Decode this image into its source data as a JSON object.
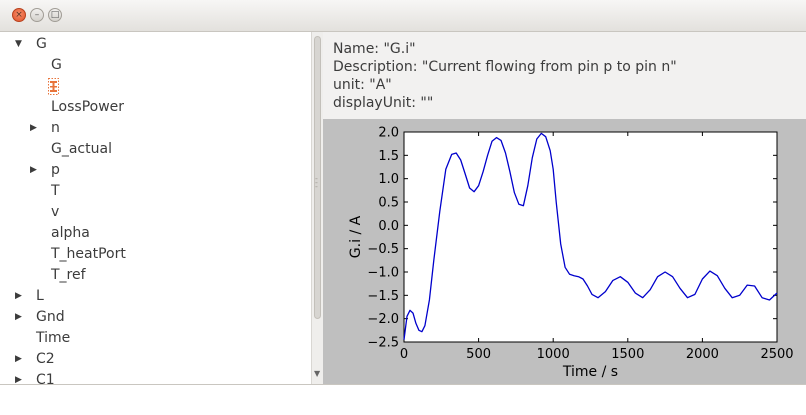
{
  "window": {
    "close_glyph": "×",
    "minimize_glyph": "–",
    "maximize_glyph": "□"
  },
  "tree": [
    {
      "label": "G",
      "depth": 0,
      "expander": "expanded",
      "icon": "triangle-down-icon"
    },
    {
      "label": "G",
      "depth": 1,
      "expander": "none"
    },
    {
      "label": "",
      "depth": 1,
      "expander": "none",
      "icon": "variable-icon",
      "selected": true
    },
    {
      "label": "LossPower",
      "depth": 1,
      "expander": "none"
    },
    {
      "label": "n",
      "depth": 1,
      "expander": "collapsed",
      "icon": "triangle-right-icon"
    },
    {
      "label": "G_actual",
      "depth": 1,
      "expander": "none"
    },
    {
      "label": "p",
      "depth": 1,
      "expander": "collapsed",
      "icon": "triangle-right-icon"
    },
    {
      "label": "T",
      "depth": 1,
      "expander": "none"
    },
    {
      "label": "v",
      "depth": 1,
      "expander": "none"
    },
    {
      "label": "alpha",
      "depth": 1,
      "expander": "none"
    },
    {
      "label": "T_heatPort",
      "depth": 1,
      "expander": "none"
    },
    {
      "label": "T_ref",
      "depth": 1,
      "expander": "none"
    },
    {
      "label": "L",
      "depth": 0,
      "expander": "collapsed",
      "icon": "triangle-right-icon"
    },
    {
      "label": "Gnd",
      "depth": 0,
      "expander": "collapsed",
      "icon": "triangle-right-icon"
    },
    {
      "label": "Time",
      "depth": 0,
      "expander": "none"
    },
    {
      "label": "C2",
      "depth": 0,
      "expander": "collapsed",
      "icon": "triangle-right-icon"
    },
    {
      "label": "C1",
      "depth": 0,
      "expander": "collapsed",
      "icon": "triangle-right-icon"
    }
  ],
  "info": {
    "name": "Name: \"G.i\"",
    "description": "Description: \"Current flowing from pin p to pin n\"",
    "unit": "unit: \"A\"",
    "display_unit": "displayUnit: \"\""
  },
  "colors": {
    "line": "#0000cc",
    "plot_bg": "#bfbfbf",
    "selected_icon": "#e8743b"
  },
  "chart_data": {
    "type": "line",
    "xlabel": "Time / s",
    "ylabel": "G.i / A",
    "xlim": [
      0,
      2500
    ],
    "ylim": [
      -2.5,
      2.0
    ],
    "xticks": [
      0,
      500,
      1000,
      1500,
      2000,
      2500
    ],
    "yticks": [
      -2.5,
      -2.0,
      -1.5,
      -1.0,
      -0.5,
      0.0,
      0.5,
      1.0,
      1.5,
      2.0
    ],
    "xtick_labels": [
      "0",
      "500",
      "1000",
      "1500",
      "2000",
      "2500"
    ],
    "ytick_labels": [
      "−2.5",
      "−2.0",
      "−1.5",
      "−1.0",
      "−0.5",
      "0.0",
      "0.5",
      "1.0",
      "1.5",
      "2.0"
    ],
    "grid": false,
    "series": [
      {
        "x": [
          0,
          20,
          40,
          60,
          80,
          100,
          120,
          140,
          170,
          200,
          240,
          280,
          320,
          350,
          380,
          410,
          440,
          470,
          500,
          530,
          560,
          590,
          620,
          650,
          680,
          710,
          740,
          770,
          800,
          830,
          860,
          890,
          920,
          950,
          980,
          1000,
          1020,
          1050,
          1080,
          1110,
          1140,
          1170,
          1200,
          1230,
          1260,
          1300,
          1350,
          1400,
          1450,
          1500,
          1550,
          1600,
          1650,
          1700,
          1750,
          1800,
          1850,
          1900,
          1950,
          2000,
          2050,
          2100,
          2150,
          2200,
          2250,
          2300,
          2350,
          2400,
          2450,
          2500
        ],
        "y": [
          -2.45,
          -1.95,
          -1.82,
          -1.88,
          -2.1,
          -2.25,
          -2.28,
          -2.15,
          -1.6,
          -0.75,
          0.3,
          1.2,
          1.52,
          1.55,
          1.4,
          1.1,
          0.8,
          0.72,
          0.85,
          1.15,
          1.5,
          1.8,
          1.88,
          1.82,
          1.55,
          1.15,
          0.7,
          0.45,
          0.42,
          0.85,
          1.45,
          1.85,
          1.97,
          1.9,
          1.6,
          1.2,
          0.5,
          -0.4,
          -0.9,
          -1.05,
          -1.08,
          -1.1,
          -1.15,
          -1.3,
          -1.48,
          -1.55,
          -1.42,
          -1.18,
          -1.1,
          -1.22,
          -1.45,
          -1.55,
          -1.38,
          -1.1,
          -1.0,
          -1.1,
          -1.35,
          -1.55,
          -1.48,
          -1.15,
          -0.98,
          -1.08,
          -1.35,
          -1.55,
          -1.5,
          -1.28,
          -1.3,
          -1.55,
          -1.6,
          -1.45
        ]
      }
    ]
  }
}
